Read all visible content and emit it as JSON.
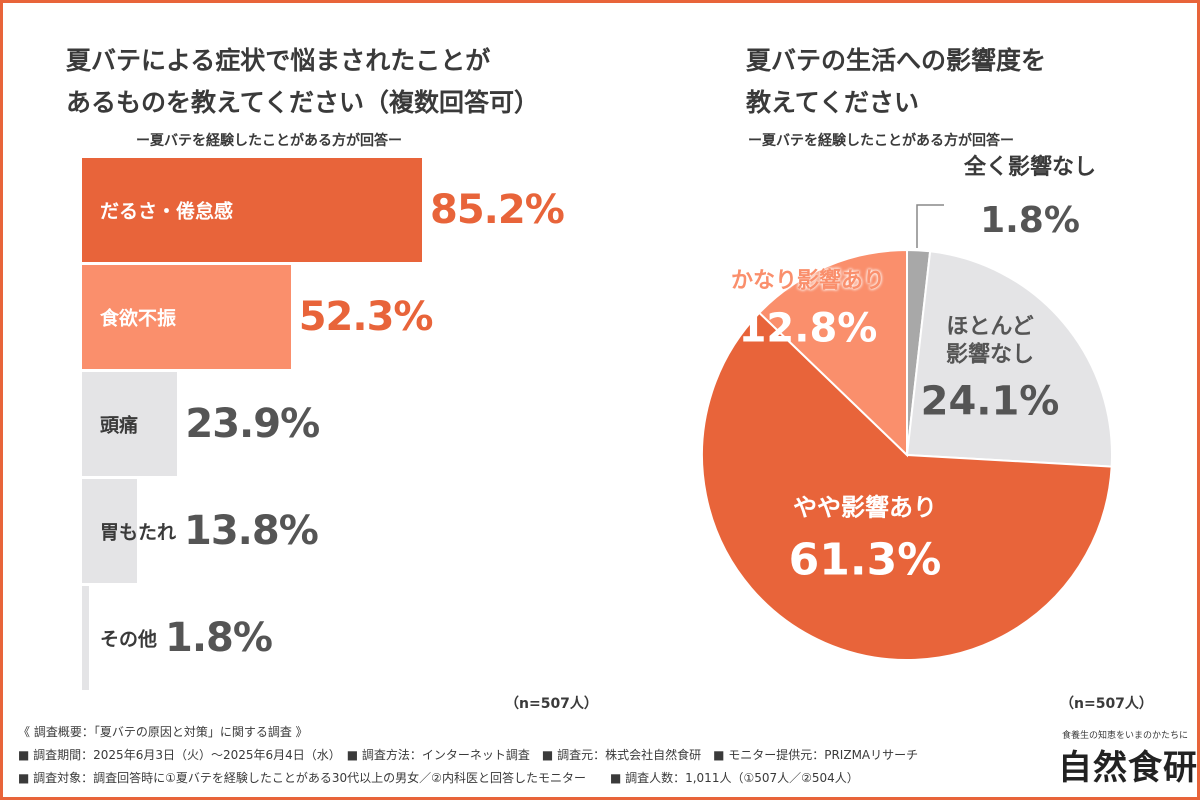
{
  "colors": {
    "accent": "#e8643a",
    "light": "#fa8f6c",
    "gray": "#e4e4e6",
    "gray_dark": "#a8a8a8",
    "text": "#3a3a3a"
  },
  "left": {
    "title_line1": "夏バテによる症状で悩まされたことが",
    "title_line2": "あるものを教えてください（複数回答可）",
    "subtitle": "ー夏バテを経験したことがある方が回答ー",
    "n": "（n=507人）"
  },
  "right": {
    "title_line1": "夏バテの生活への影響度を",
    "title_line2": "教えてください",
    "subtitle": "ー夏バテを経験したことがある方が回答ー",
    "n": "（n=507人）"
  },
  "chart_data": [
    {
      "type": "bar",
      "orientation": "horizontal",
      "categories": [
        "だるさ・倦怠感",
        "食欲不振",
        "頭痛",
        "胃もたれ",
        "その他"
      ],
      "values": [
        85.2,
        52.3,
        23.9,
        13.8,
        1.8
      ],
      "labels": [
        "85.2%",
        "52.3%",
        "23.9%",
        "13.8%",
        "1.8%"
      ],
      "unit": "%"
    },
    {
      "type": "pie",
      "categories": [
        "全く影響なし",
        "ほとんど影響なし",
        "やや影響あり",
        "かなり影響あり"
      ],
      "values": [
        1.8,
        24.1,
        61.3,
        12.8
      ],
      "labels": [
        "1.8%",
        "24.1%",
        "61.3%",
        "12.8%"
      ],
      "unit": "%"
    }
  ],
  "footer": {
    "line1": "《 調査概要：「夏バテの原因と対策」に関する調査 》",
    "line2": "■ 調査期間：2025年6月3日（火）〜2025年6月4日（水）　■ 調査方法：インターネット調査　■ 調査元：株式会社自然食研　■ モニター提供元：PRIZMAリサーチ",
    "line3": "■ 調査対象：調査回答時に①夏バテを経験したことがある30代以上の男女／②内科医と回答したモニター　　■ 調査人数：1,011人（①507人／②504人）",
    "brand_tagline": "食養生の知恵をいまのかたちに",
    "brand_name": "自然食研"
  }
}
